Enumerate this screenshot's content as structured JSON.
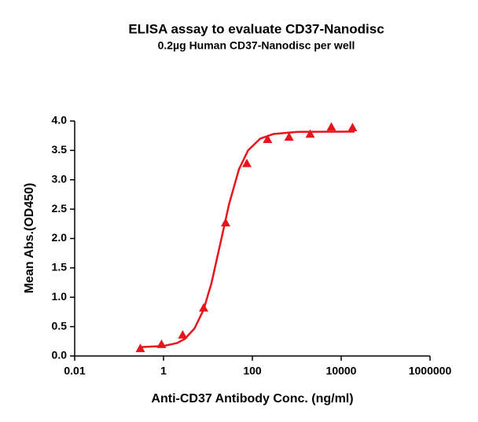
{
  "chart_data": {
    "type": "scatter",
    "title": "ELISA assay to evaluate CD37-Nanodisc",
    "subtitle": "0.2µg Human CD37-Nanodisc per well",
    "xlabel": "Anti-CD37 Antibody Conc. (ng/ml)",
    "ylabel": "Mean Abs.(OD450)",
    "xscale": "log",
    "xlim": [
      0.01,
      1000000
    ],
    "xticks": [
      0.01,
      1,
      100,
      10000,
      1000000
    ],
    "ylim": [
      0,
      4.0
    ],
    "yticks": [
      {
        "value": 0,
        "label": "0.0"
      },
      0.5,
      {
        "value": 1,
        "label": "1.0"
      },
      1.5,
      {
        "value": 2,
        "label": "2.0"
      },
      2.5,
      {
        "value": 3,
        "label": "3.0"
      },
      3.5,
      {
        "value": 4,
        "label": "4.0"
      }
    ],
    "series": [
      {
        "type": "scatter",
        "marker": "triangle",
        "color": "#e8141c",
        "x": [
          0.3,
          0.9,
          2.7,
          8,
          25,
          75,
          220,
          670,
          2000,
          6000,
          18000
        ],
        "values": [
          0.13,
          0.2,
          0.36,
          0.82,
          2.27,
          3.28,
          3.69,
          3.73,
          3.78,
          3.9,
          3.89
        ]
      },
      {
        "type": "line",
        "color": "#e8141c",
        "x": [
          0.3,
          1,
          2,
          3,
          5,
          8,
          12,
          20,
          30,
          50,
          80,
          150,
          300,
          1000,
          20000
        ],
        "values": [
          0.15,
          0.17,
          0.22,
          0.29,
          0.47,
          0.79,
          1.24,
          1.99,
          2.59,
          3.18,
          3.5,
          3.7,
          3.78,
          3.815,
          3.82
        ]
      }
    ]
  }
}
